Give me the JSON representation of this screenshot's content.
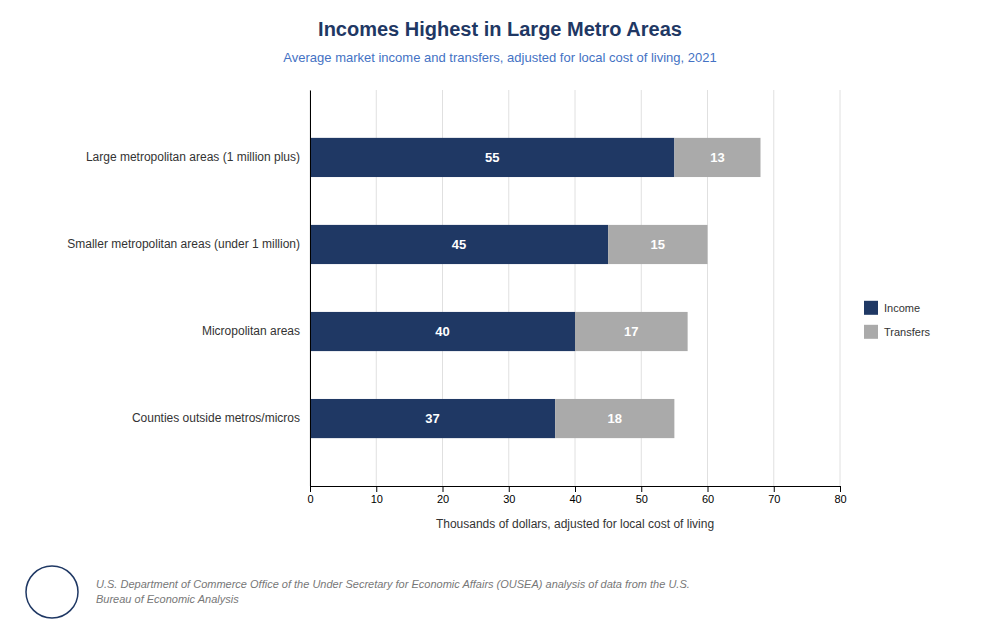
{
  "chart_data": {
    "type": "bar",
    "orientation": "horizontal",
    "stacked": true,
    "title": "Incomes Highest in Large Metro Areas",
    "subtitle": "Average market income and transfers, adjusted for local cost of living, 2021",
    "categories": [
      "Large metropolitan areas (1 million plus)",
      "Smaller metropolitan areas (under 1 million)",
      "Micropolitan areas",
      "Counties outside metros/micros"
    ],
    "series": [
      {
        "name": "Income",
        "color": "#1F3864",
        "values": [
          55,
          45,
          40,
          37
        ]
      },
      {
        "name": "Transfers",
        "color": "#AAAAAA",
        "values": [
          13,
          15,
          17,
          18
        ]
      }
    ],
    "xlabel": "Thousands of dollars, adjusted for local cost of living",
    "xlim": [
      0,
      80
    ],
    "xticks": [
      0,
      10,
      20,
      30,
      40,
      50,
      60,
      70,
      80
    ],
    "grid": true,
    "legend": "right",
    "data_labels": true,
    "footer": "U.S. Department of Commerce Office of the Under Secretary for Economic Affairs (OUSEA) analysis of data from the U.S.\nBureau of Economic Analysis"
  }
}
